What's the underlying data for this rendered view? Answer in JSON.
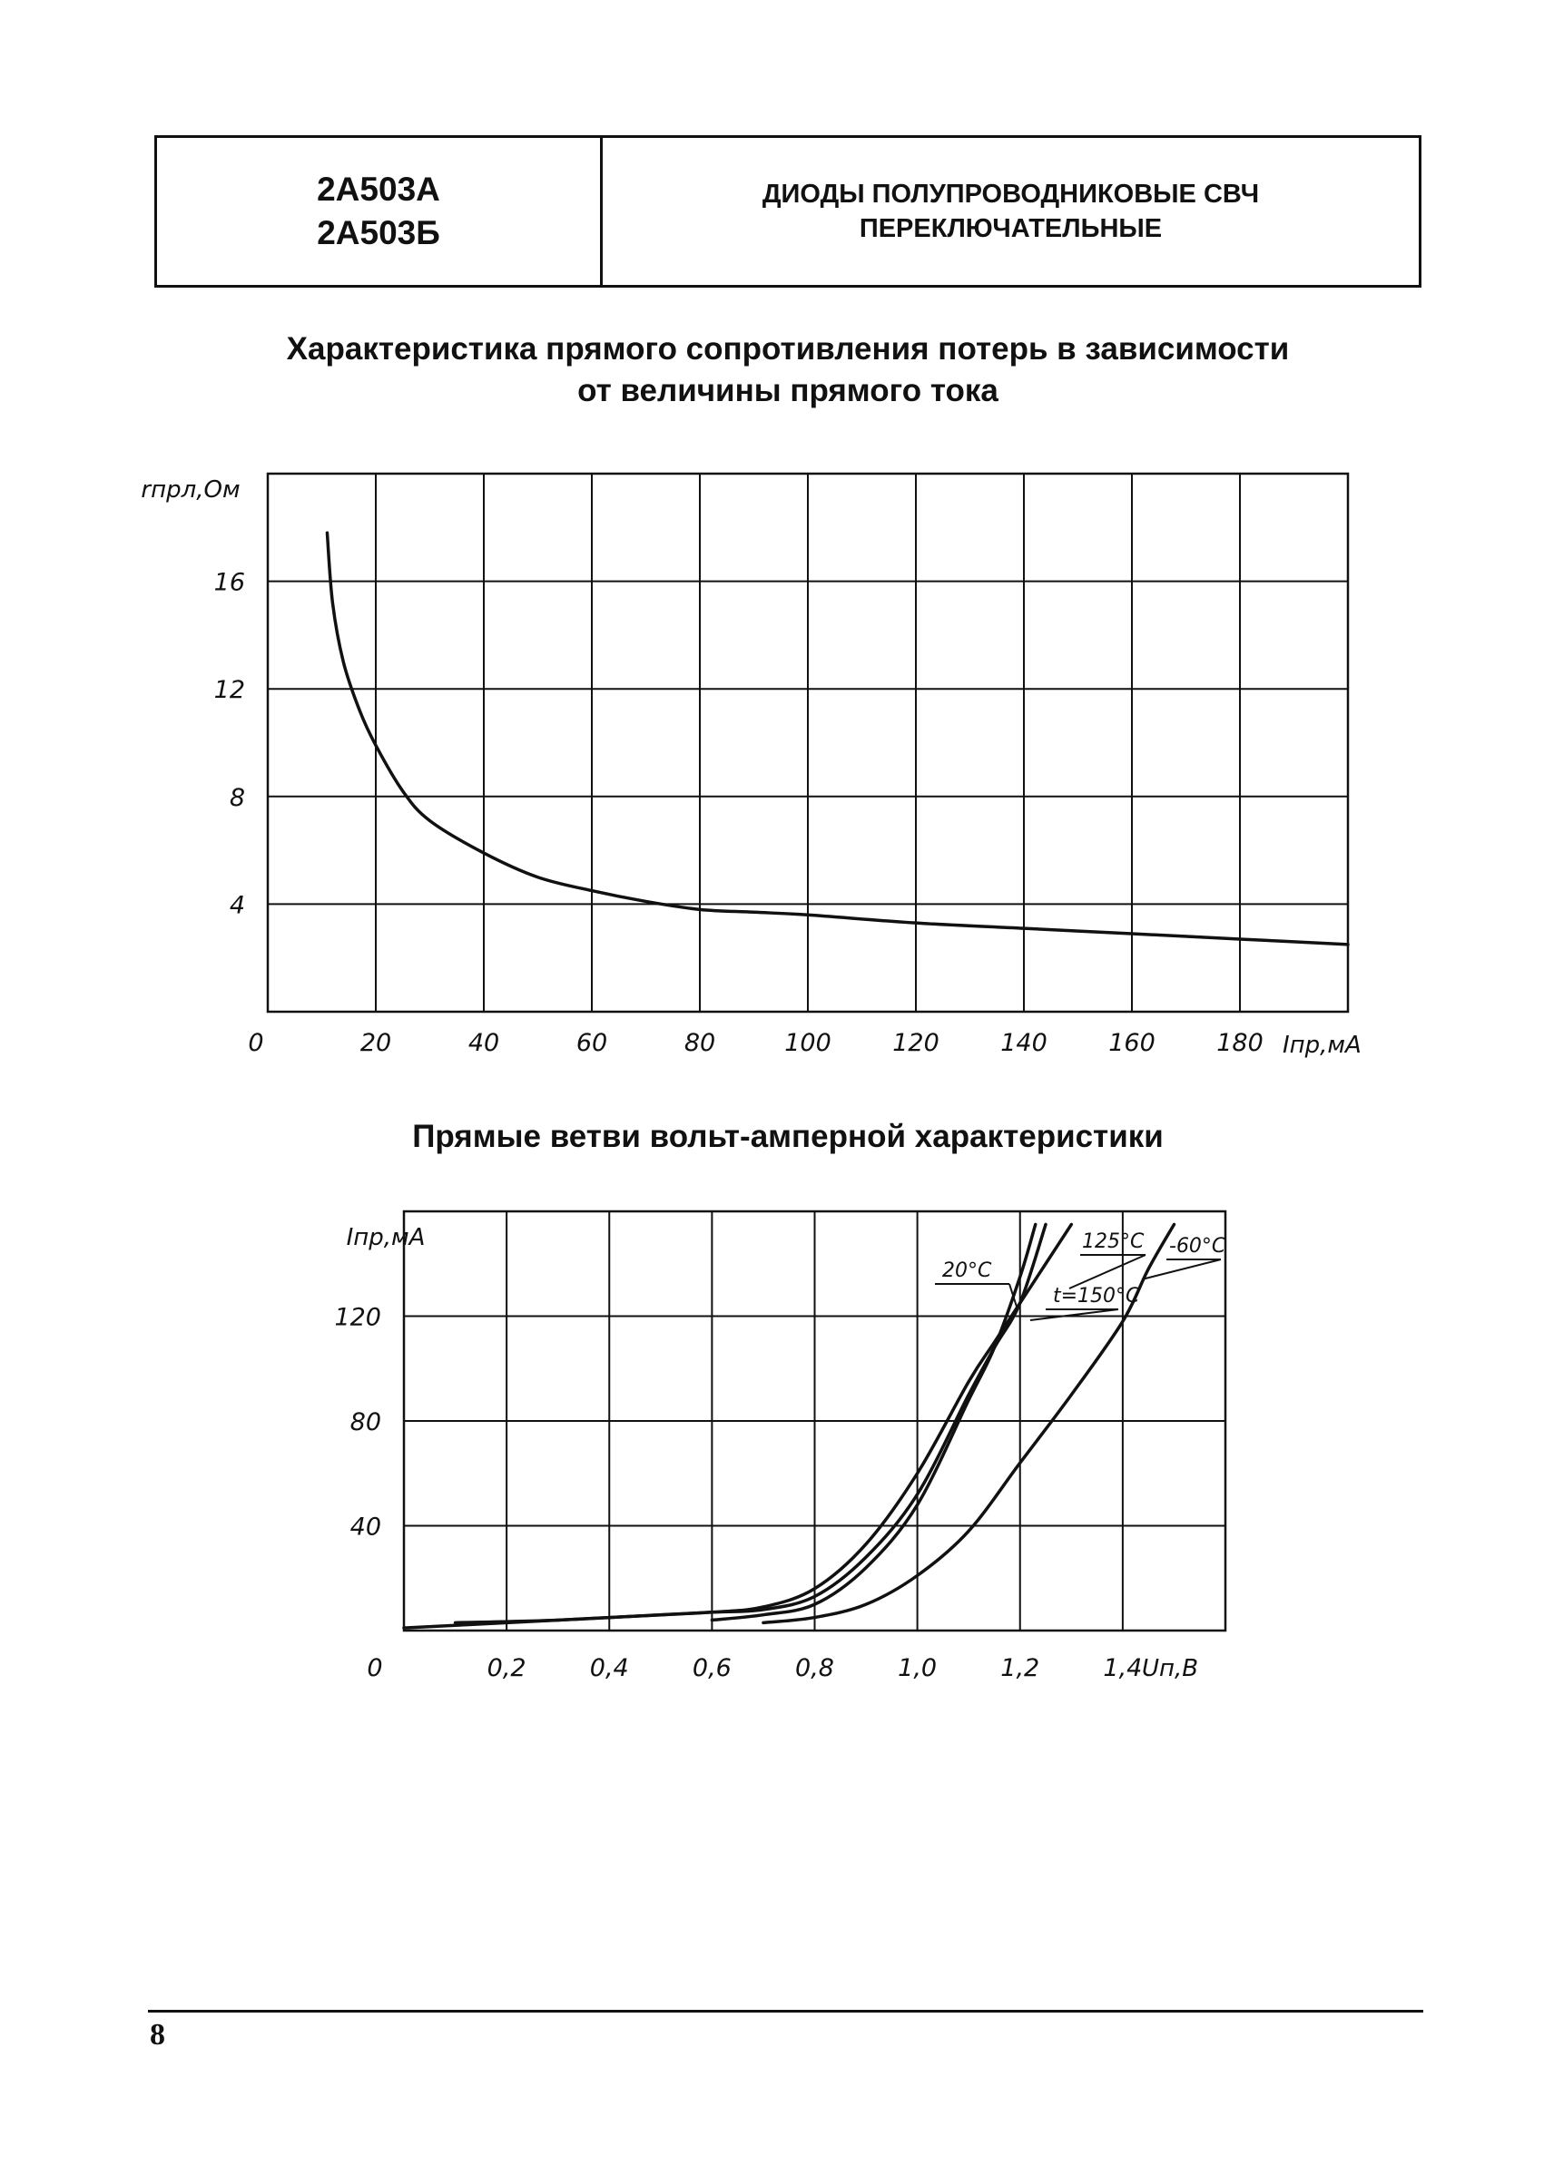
{
  "header": {
    "code_a": "2А503А",
    "code_b": "2А503Б",
    "title_line1": "ДИОДЫ ПОЛУПРОВОДНИКОВЫЕ СВЧ",
    "title_line2": "ПЕРЕКЛЮЧАТЕЛЬНЫЕ"
  },
  "chart1_title_line1": "Характеристика прямого сопротивления потерь в зависимости",
  "chart1_title_line2": "от величины прямого тока",
  "chart2_title": "Прямые ветви вольт-амперной характеристики",
  "page_number": "8",
  "chart_data": [
    {
      "type": "line",
      "title": "Характеристика прямого сопротивления потерь в зависимости от величины прямого тока",
      "xlabel": "Iпр,мА",
      "ylabel": "rпрл,Ом",
      "xlim": [
        0,
        200
      ],
      "ylim": [
        0,
        20
      ],
      "x_ticks": [
        "0",
        "20",
        "40",
        "60",
        "80",
        "100",
        "120",
        "140",
        "160",
        "180"
      ],
      "y_ticks": [
        "4",
        "8",
        "12",
        "16"
      ],
      "grid": true,
      "series": [
        {
          "x": [
            11,
            12,
            14,
            17,
            20,
            25,
            30,
            40,
            50,
            60,
            70,
            80,
            90,
            100,
            120,
            140,
            160,
            180,
            200
          ],
          "y": [
            17.8,
            15.2,
            13.0,
            11.2,
            9.9,
            8.2,
            7.1,
            5.9,
            5.0,
            4.5,
            4.1,
            3.8,
            3.7,
            3.6,
            3.3,
            3.1,
            2.9,
            2.7,
            2.5
          ]
        }
      ]
    },
    {
      "type": "line",
      "title": "Прямые ветви вольт-амперной характеристики",
      "xlabel": "Uп,В",
      "ylabel": "Iпр,мА",
      "xlim": [
        0,
        1.6
      ],
      "ylim": [
        0,
        160
      ],
      "x_ticks": [
        "0",
        "0,2",
        "0,4",
        "0,6",
        "0,8",
        "1,0",
        "1,2",
        "1,4"
      ],
      "y_ticks": [
        "40",
        "80",
        "120"
      ],
      "grid": true,
      "series": [
        {
          "name": "t=150°C",
          "x": [
            0.0,
            0.2,
            0.4,
            0.6,
            0.7,
            0.8,
            0.9,
            1.0,
            1.1,
            1.15,
            1.2,
            1.25,
            1.3
          ],
          "y": [
            1,
            3,
            5,
            7,
            9,
            16,
            33,
            60,
            95,
            110,
            125,
            140,
            155
          ]
        },
        {
          "name": "125°C",
          "x": [
            0.1,
            0.3,
            0.5,
            0.6,
            0.7,
            0.8,
            0.9,
            1.0,
            1.1,
            1.15,
            1.2,
            1.25
          ],
          "y": [
            3,
            4,
            6,
            7,
            8,
            13,
            28,
            52,
            90,
            108,
            125,
            155
          ]
        },
        {
          "name": "20°C",
          "x": [
            0.6,
            0.7,
            0.8,
            0.9,
            1.0,
            1.1,
            1.15,
            1.2,
            1.23
          ],
          "y": [
            4,
            6,
            10,
            24,
            48,
            88,
            108,
            135,
            155
          ]
        },
        {
          "name": "-60°C",
          "x": [
            0.7,
            0.8,
            0.9,
            1.0,
            1.1,
            1.2,
            1.3,
            1.4,
            1.45,
            1.5
          ],
          "y": [
            3,
            5,
            10,
            21,
            38,
            64,
            90,
            118,
            138,
            155
          ]
        }
      ]
    }
  ]
}
